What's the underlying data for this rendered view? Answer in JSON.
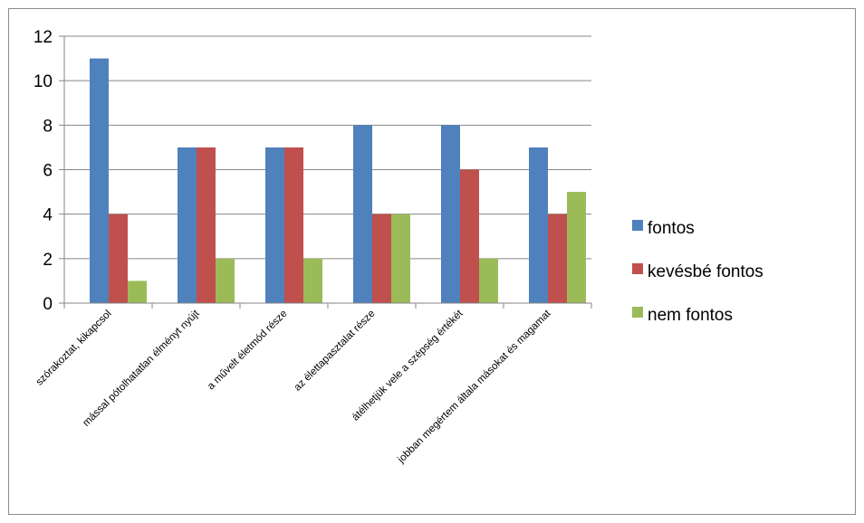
{
  "chart_data": {
    "type": "bar",
    "categories": [
      "szórakoztat, kikapcsol",
      "mással pótolhatatlan élményt nyújt",
      "a művelt életmód része",
      "az élettapasztalat része",
      "átélhetjük vele a szépség értékét",
      "jobban megértem általa másokat és magamat"
    ],
    "series": [
      {
        "name": "fontos",
        "values": [
          11,
          7,
          7,
          8,
          8,
          7
        ],
        "color": "#4F81BD"
      },
      {
        "name": "kevésbé fontos",
        "values": [
          4,
          7,
          7,
          4,
          6,
          4
        ],
        "color": "#C0504D"
      },
      {
        "name": "nem fontos",
        "values": [
          1,
          2,
          2,
          4,
          2,
          5
        ],
        "color": "#9BBB59"
      }
    ],
    "ylim": [
      0,
      12
    ],
    "yticks": [
      "0",
      "2",
      "4",
      "6",
      "8",
      "10",
      "12"
    ],
    "grid": true,
    "legend_position": "right",
    "title": "",
    "xlabel": "",
    "ylabel": ""
  }
}
